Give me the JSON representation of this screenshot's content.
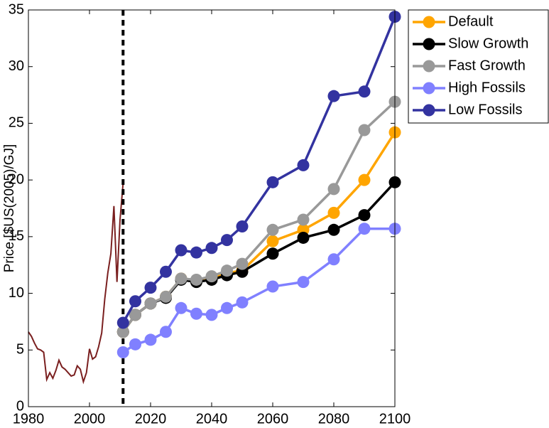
{
  "chart_data": {
    "type": "line",
    "ylabel": "Price [$US(2005)/GJ]",
    "xlim": [
      1980,
      2100
    ],
    "xticks": [
      1980,
      2000,
      2020,
      2040,
      2060,
      2080,
      2100
    ],
    "ylim": [
      0,
      35
    ],
    "yticks": [
      0,
      5,
      10,
      15,
      20,
      25,
      30,
      35
    ],
    "vline": 2011,
    "legend": "outside-top-right",
    "history": {
      "color": "#7a1f1f",
      "x": [
        1980,
        1981,
        1982,
        1983,
        1984,
        1985,
        1986,
        1987,
        1988,
        1989,
        1990,
        1991,
        1992,
        1993,
        1994,
        1995,
        1996,
        1997,
        1998,
        1999,
        2000,
        2001,
        2002,
        2003,
        2004,
        2005,
        2006,
        2007,
        2008,
        2009,
        2010,
        2011
      ],
      "values": [
        6.6,
        6.2,
        5.6,
        5.1,
        5.0,
        4.8,
        2.4,
        3.0,
        2.5,
        3.2,
        4.1,
        3.5,
        3.3,
        3.0,
        2.7,
        2.8,
        3.6,
        3.3,
        2.2,
        3.0,
        5.1,
        4.2,
        4.4,
        5.3,
        6.5,
        9.5,
        11.8,
        13.5,
        17.7,
        11.0,
        16.5,
        19.7
      ]
    },
    "x": [
      2011,
      2015,
      2020,
      2025,
      2030,
      2035,
      2040,
      2045,
      2050,
      2060,
      2070,
      2080,
      2090,
      2100
    ],
    "series": [
      {
        "name": "Default",
        "color": "#ffa500",
        "values": [
          6.6,
          8.1,
          9.1,
          9.7,
          11.3,
          11.1,
          11.3,
          11.8,
          12.0,
          14.6,
          15.6,
          17.1,
          20.0,
          24.2
        ]
      },
      {
        "name": "Slow Growth",
        "color": "#000000",
        "values": [
          6.6,
          8.1,
          9.1,
          9.6,
          11.2,
          11.0,
          11.2,
          11.6,
          11.9,
          13.5,
          14.9,
          15.6,
          16.9,
          19.8
        ]
      },
      {
        "name": "Fast Growth",
        "color": "#999999",
        "values": [
          6.6,
          8.1,
          9.1,
          9.7,
          11.3,
          11.2,
          11.5,
          12.0,
          12.6,
          15.6,
          16.5,
          19.2,
          24.4,
          26.9
        ]
      },
      {
        "name": "High Fossils",
        "color": "#8080ff",
        "values": [
          4.8,
          5.5,
          5.9,
          6.6,
          8.7,
          8.2,
          8.1,
          8.7,
          9.2,
          10.6,
          11.0,
          13.0,
          15.7,
          15.7
        ]
      },
      {
        "name": "Low Fossils",
        "color": "#3333a0",
        "values": [
          7.4,
          9.3,
          10.5,
          11.9,
          13.8,
          13.6,
          14.0,
          14.7,
          15.9,
          19.8,
          21.3,
          27.4,
          27.8,
          34.4
        ]
      }
    ]
  }
}
